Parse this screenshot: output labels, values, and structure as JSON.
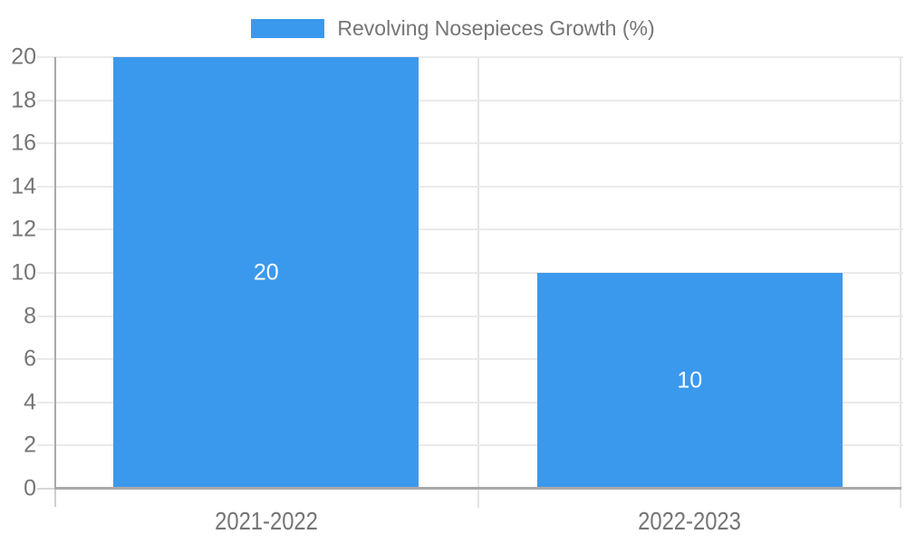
{
  "legend": {
    "label": "Revolving Nosepieces Growth (%)"
  },
  "chart_data": {
    "type": "bar",
    "title": "Revolving Nosepieces Growth (%)",
    "categories": [
      "2021-2022",
      "2022-2023"
    ],
    "values": [
      20,
      10
    ],
    "data_labels": [
      "20",
      "10"
    ],
    "xlabel": "",
    "ylabel": "",
    "ylim": [
      0,
      20
    ],
    "yticks": [
      0,
      2,
      4,
      6,
      8,
      10,
      12,
      14,
      16,
      18,
      20
    ],
    "grid": true,
    "legend_position": "top-center",
    "colors": {
      "bar": "#3b99ed",
      "axis_text": "#757575",
      "data_label_text": "#ffffff",
      "gridline": "#eaeaea",
      "tick_mark": "#d9d9d9",
      "axis_line": "#a9a9a9",
      "baseline": "#a9a9a9",
      "plot_border": "#e3e3e3",
      "below_axis_tick": "#cfcfcf",
      "background": "#ffffff"
    }
  }
}
